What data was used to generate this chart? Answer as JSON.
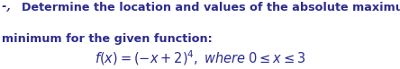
{
  "bullet": "-, ",
  "line1_suffix": "Determine the location and values of the absolute maximum and absolute",
  "line2": "minimum for the given function:",
  "formula": "$f(x) = (-x + 2)^4, \\; \\mathit{where} \\; 0 \\leq x \\leq 3$",
  "font_size_main": 9.2,
  "font_size_formula": 10.5,
  "text_color": "#2b2b8f",
  "bg_color": "#ffffff",
  "fig_width": 4.44,
  "fig_height": 0.77
}
